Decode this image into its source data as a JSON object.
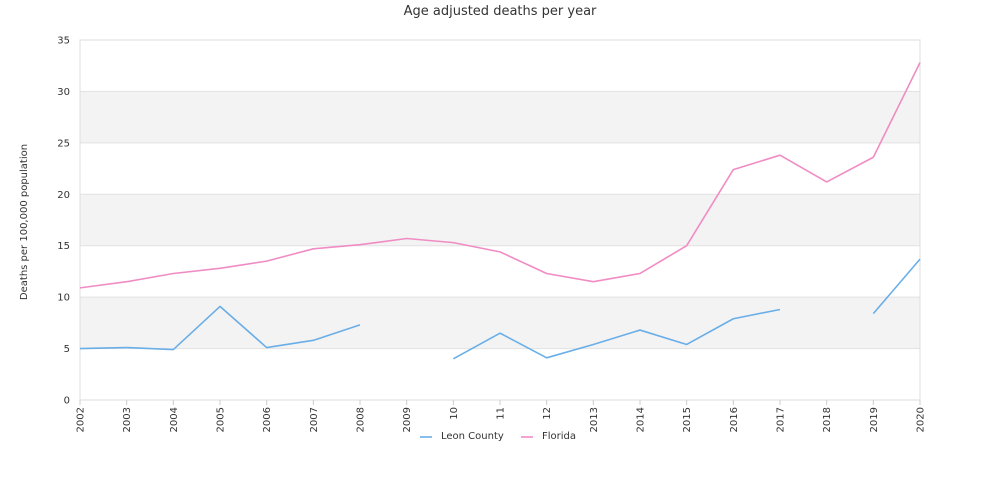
{
  "chart_data": {
    "type": "line",
    "title": "Age adjusted deaths per year",
    "xlabel": "",
    "ylabel": "Deaths per 100,000 population",
    "categories": [
      "2002",
      "2003",
      "2004",
      "2005",
      "2006",
      "2007",
      "2008",
      "2009",
      "10",
      "11",
      "12",
      "2013",
      "2014",
      "2015",
      "2016",
      "2017",
      "2018",
      "2019",
      "2020"
    ],
    "ylim": [
      0,
      35
    ],
    "yticks": [
      0,
      5,
      10,
      15,
      20,
      25,
      30,
      35
    ],
    "grid": true,
    "legend_position": "bottom",
    "series": [
      {
        "name": "Leon County",
        "color": "#6aaee8",
        "values": [
          5.0,
          5.1,
          4.9,
          9.1,
          5.1,
          5.8,
          7.3,
          null,
          4.0,
          6.5,
          4.1,
          5.4,
          6.8,
          5.4,
          7.9,
          8.8,
          null,
          8.4,
          13.7
        ]
      },
      {
        "name": "Florida",
        "color": "#f08cc4",
        "values": [
          10.9,
          11.5,
          12.3,
          12.8,
          13.5,
          14.7,
          15.1,
          15.7,
          15.3,
          14.4,
          12.3,
          11.5,
          12.3,
          15.0,
          22.4,
          23.8,
          21.2,
          23.6,
          32.8
        ]
      }
    ]
  }
}
